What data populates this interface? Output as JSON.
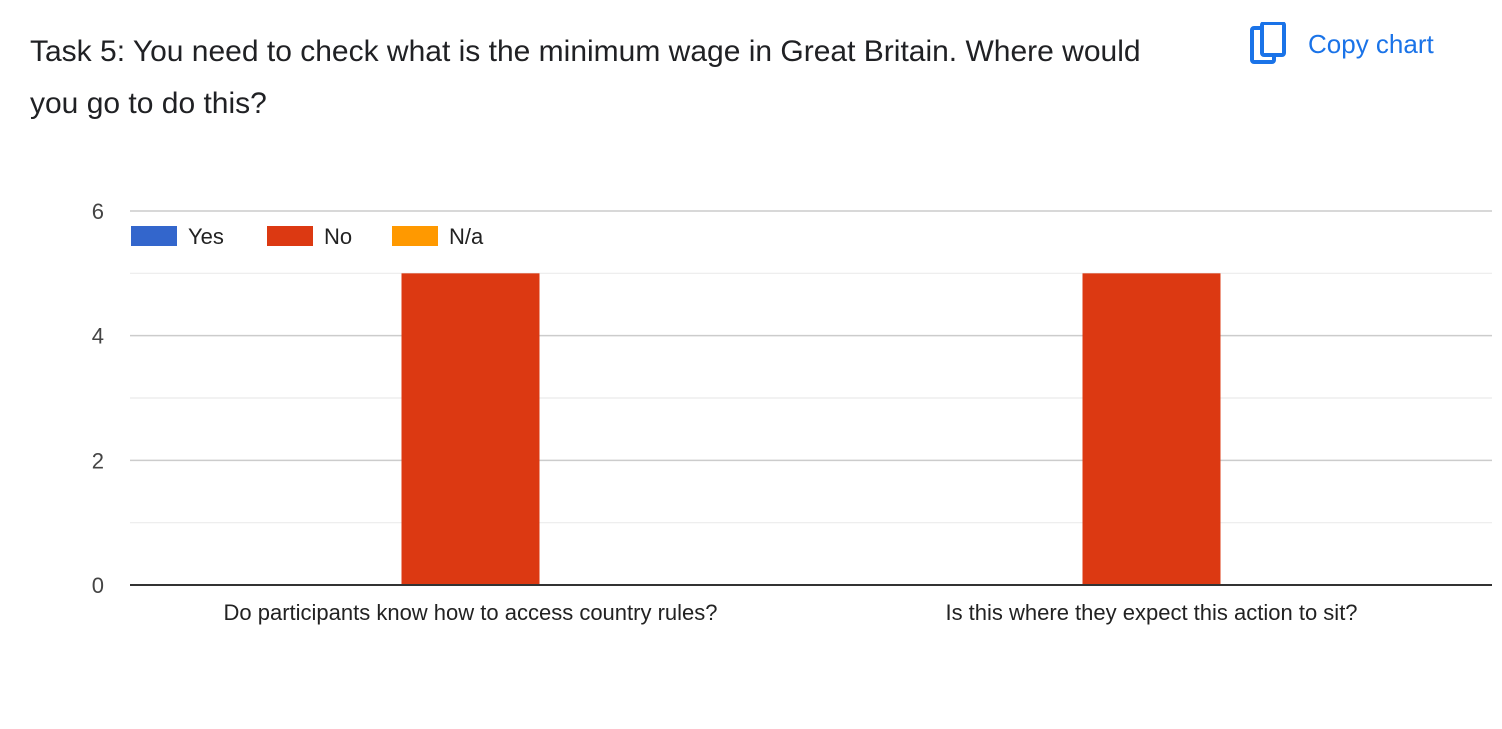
{
  "header": {
    "title": "Task 5: You need to check what is the minimum wage in Great Britain. Where would you go to do this?",
    "copy_label": "Copy chart",
    "copy_icon": "copy-icon",
    "accent": "#1a73e8"
  },
  "chart_data": {
    "type": "bar",
    "categories": [
      "Do participants know how to access country rules?",
      "Is this where they expect this action to sit?"
    ],
    "series": [
      {
        "name": "Yes",
        "color": "#3366cc",
        "values": [
          0,
          0
        ]
      },
      {
        "name": "No",
        "color": "#dc3912",
        "values": [
          5,
          5
        ]
      },
      {
        "name": "N/a",
        "color": "#ff9900",
        "values": [
          0,
          0
        ]
      }
    ],
    "ylim": [
      0,
      6
    ],
    "yticks": [
      "0",
      "2",
      "4",
      "6"
    ],
    "grid": true,
    "legend": "top-left"
  }
}
